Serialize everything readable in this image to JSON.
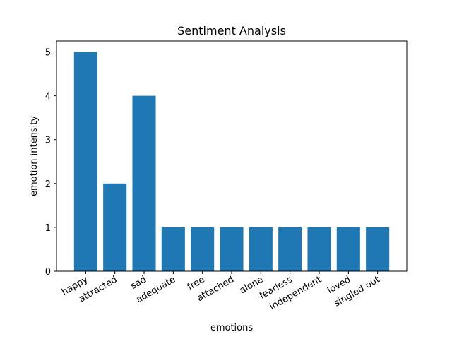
{
  "chart_data": {
    "type": "bar",
    "title": "Sentiment Analysis",
    "xlabel": "emotions",
    "ylabel": "emotion intensity",
    "categories": [
      "happy",
      "attracted",
      "sad",
      "adequate",
      "free",
      "attached",
      "alone",
      "fearless",
      "independent",
      "loved",
      "singled out"
    ],
    "values": [
      5,
      2,
      4,
      1,
      1,
      1,
      1,
      1,
      1,
      1,
      1
    ],
    "ylim": [
      0,
      5.25
    ],
    "yticks": [
      0,
      1,
      2,
      3,
      4,
      5
    ],
    "grid": false,
    "bar_color": "#1f77b4"
  }
}
